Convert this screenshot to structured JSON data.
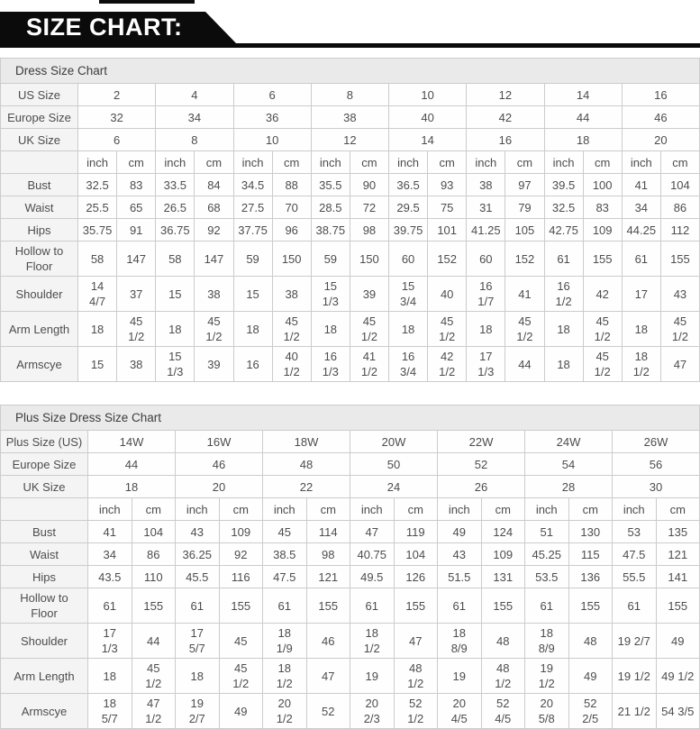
{
  "colors": {
    "banner_bg": "#0b0b0b",
    "banner_text": "#ffffff",
    "table_border": "#cccccc",
    "title_row_bg": "#eaeaea",
    "label_col_bg": "#f4f4f4",
    "cell_bg": "#fefefe",
    "text": "#4d4d4d"
  },
  "banner": {
    "title": "SIZE CHART:"
  },
  "units": [
    "inch",
    "cm"
  ],
  "tables": [
    {
      "name": "dress-size-table",
      "title": "Dress Size Chart",
      "size_rows": [
        {
          "label": "US Size",
          "values": [
            "2",
            "4",
            "6",
            "8",
            "10",
            "12",
            "14",
            "16"
          ]
        },
        {
          "label": "Europe Size",
          "values": [
            "32",
            "34",
            "36",
            "38",
            "40",
            "42",
            "44",
            "46"
          ]
        },
        {
          "label": "UK Size",
          "values": [
            "6",
            "8",
            "10",
            "12",
            "14",
            "16",
            "18",
            "20"
          ]
        }
      ],
      "measure_rows": [
        {
          "label": "Bust",
          "cells": [
            "32.5",
            "83",
            "33.5",
            "84",
            "34.5",
            "88",
            "35.5",
            "90",
            "36.5",
            "93",
            "38",
            "97",
            "39.5",
            "100",
            "41",
            "104"
          ]
        },
        {
          "label": "Waist",
          "cells": [
            "25.5",
            "65",
            "26.5",
            "68",
            "27.5",
            "70",
            "28.5",
            "72",
            "29.5",
            "75",
            "31",
            "79",
            "32.5",
            "83",
            "34",
            "86"
          ]
        },
        {
          "label": "Hips",
          "cells": [
            "35.75",
            "91",
            "36.75",
            "92",
            "37.75",
            "96",
            "38.75",
            "98",
            "39.75",
            "101",
            "41.25",
            "105",
            "42.75",
            "109",
            "44.25",
            "112"
          ]
        },
        {
          "label": "Hollow to\nFloor",
          "cells": [
            "58",
            "147",
            "58",
            "147",
            "59",
            "150",
            "59",
            "150",
            "60",
            "152",
            "60",
            "152",
            "61",
            "155",
            "61",
            "155"
          ]
        },
        {
          "label": "Shoulder",
          "cells": [
            "14\n4/7",
            "37",
            "15",
            "38",
            "15",
            "38",
            "15\n1/3",
            "39",
            "15\n3/4",
            "40",
            "16\n1/7",
            "41",
            "16\n1/2",
            "42",
            "17",
            "43"
          ]
        },
        {
          "label": "Arm Length",
          "cells": [
            "18",
            "45\n1/2",
            "18",
            "45\n1/2",
            "18",
            "45\n1/2",
            "18",
            "45\n1/2",
            "18",
            "45\n1/2",
            "18",
            "45\n1/2",
            "18",
            "45\n1/2",
            "18",
            "45\n1/2"
          ]
        },
        {
          "label": "Armscye",
          "cells": [
            "15",
            "38",
            "15\n1/3",
            "39",
            "16",
            "40\n1/2",
            "16\n1/3",
            "41\n1/2",
            "16\n3/4",
            "42\n1/2",
            "17\n1/3",
            "44",
            "18",
            "45\n1/2",
            "18\n1/2",
            "47"
          ]
        }
      ]
    },
    {
      "name": "plus-size-table",
      "title": "Plus Size Dress Size Chart",
      "size_rows": [
        {
          "label": "Plus Size (US)",
          "values": [
            "14W",
            "16W",
            "18W",
            "20W",
            "22W",
            "24W",
            "26W"
          ]
        },
        {
          "label": "Europe Size",
          "values": [
            "44",
            "46",
            "48",
            "50",
            "52",
            "54",
            "56"
          ]
        },
        {
          "label": "UK Size",
          "values": [
            "18",
            "20",
            "22",
            "24",
            "26",
            "28",
            "30"
          ]
        }
      ],
      "measure_rows": [
        {
          "label": "Bust",
          "cells": [
            "41",
            "104",
            "43",
            "109",
            "45",
            "114",
            "47",
            "119",
            "49",
            "124",
            "51",
            "130",
            "53",
            "135"
          ]
        },
        {
          "label": "Waist",
          "cells": [
            "34",
            "86",
            "36.25",
            "92",
            "38.5",
            "98",
            "40.75",
            "104",
            "43",
            "109",
            "45.25",
            "115",
            "47.5",
            "121"
          ]
        },
        {
          "label": "Hips",
          "cells": [
            "43.5",
            "110",
            "45.5",
            "116",
            "47.5",
            "121",
            "49.5",
            "126",
            "51.5",
            "131",
            "53.5",
            "136",
            "55.5",
            "141"
          ]
        },
        {
          "label": "Hollow to\nFloor",
          "cells": [
            "61",
            "155",
            "61",
            "155",
            "61",
            "155",
            "61",
            "155",
            "61",
            "155",
            "61",
            "155",
            "61",
            "155"
          ]
        },
        {
          "label": "Shoulder",
          "cells": [
            "17\n1/3",
            "44",
            "17\n5/7",
            "45",
            "18\n1/9",
            "46",
            "18\n1/2",
            "47",
            "18\n8/9",
            "48",
            "18\n8/9",
            "48",
            "19 2/7",
            "49"
          ]
        },
        {
          "label": "Arm Length",
          "cells": [
            "18",
            "45\n1/2",
            "18",
            "45\n1/2",
            "18\n1/2",
            "47",
            "19",
            "48\n1/2",
            "19",
            "48\n1/2",
            "19\n1/2",
            "49",
            "19 1/2",
            "49 1/2"
          ]
        },
        {
          "label": "Armscye",
          "cells": [
            "18\n5/7",
            "47\n1/2",
            "19\n2/7",
            "49",
            "20\n1/2",
            "52",
            "20\n2/3",
            "52\n1/2",
            "20\n4/5",
            "52\n4/5",
            "20\n5/8",
            "52\n2/5",
            "21 1/2",
            "54 3/5"
          ]
        }
      ]
    }
  ]
}
